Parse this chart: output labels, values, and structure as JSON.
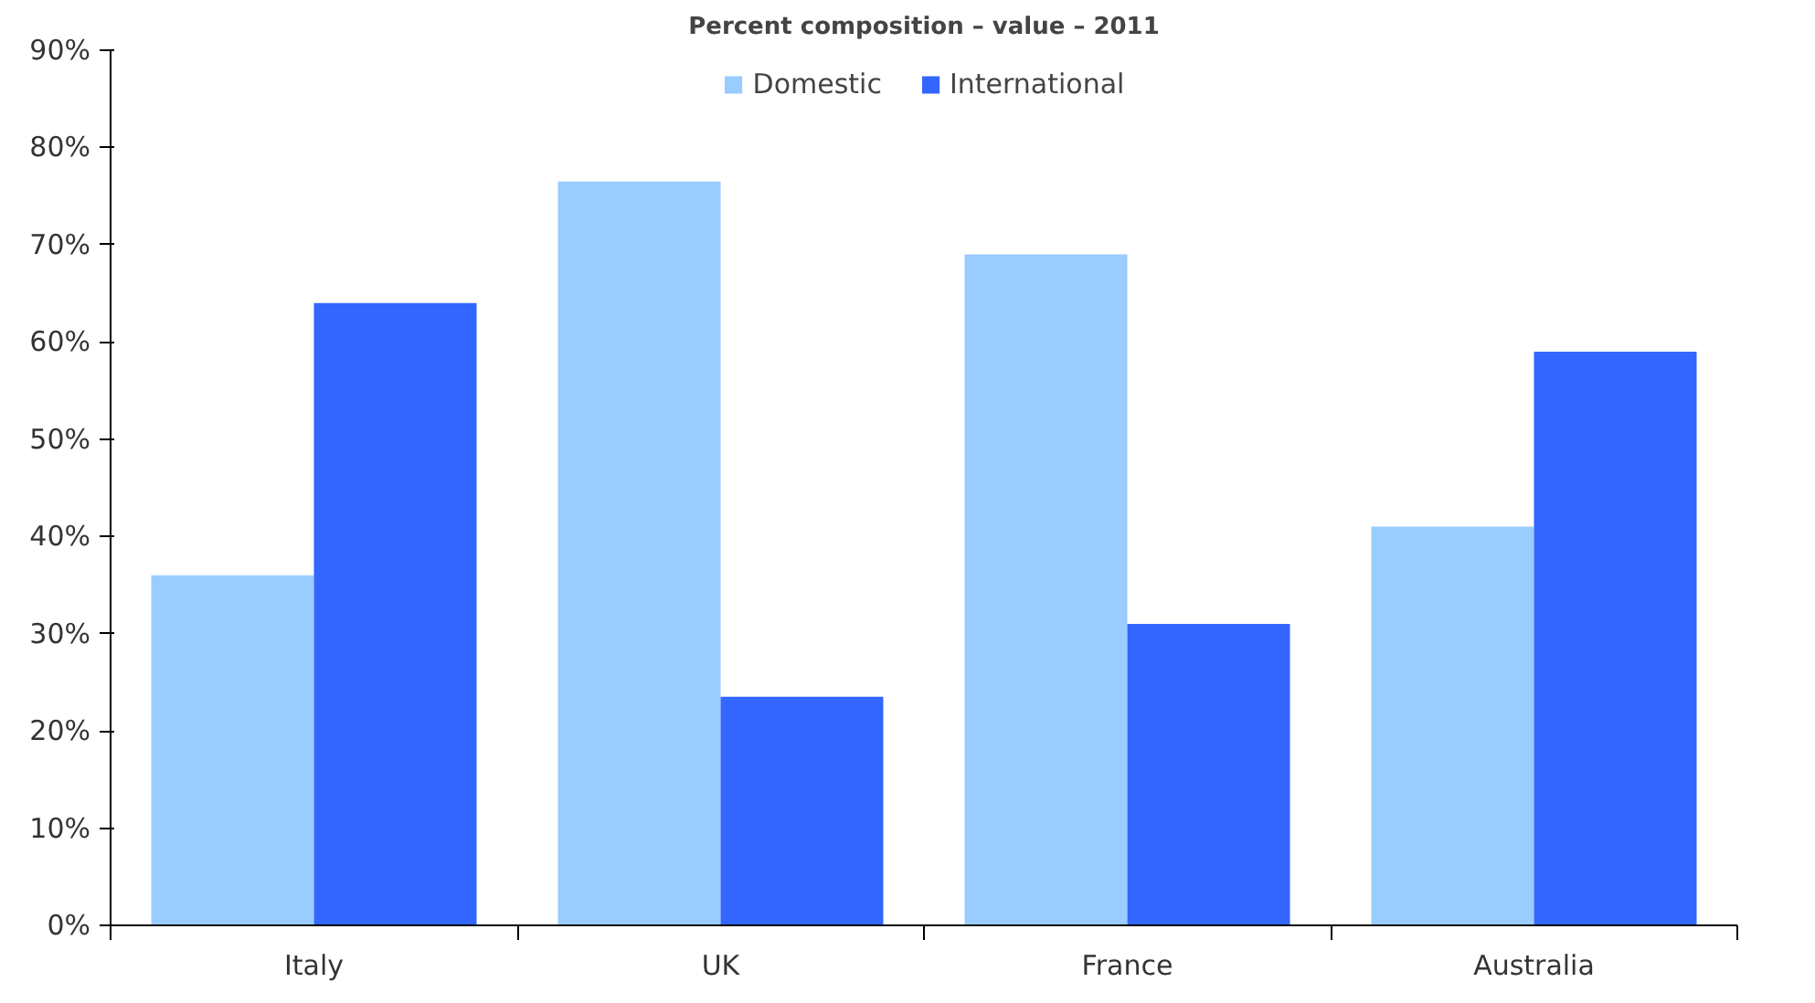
{
  "chart_data": {
    "type": "bar",
    "title": "Percent composition – value – 2011",
    "categories": [
      "Italy",
      "UK",
      "France",
      "Australia"
    ],
    "series": [
      {
        "name": "Domestic",
        "color": "#99ccff",
        "values": [
          36,
          76.5,
          69,
          41
        ]
      },
      {
        "name": "International",
        "color": "#3366ff",
        "values": [
          64,
          23.5,
          31,
          59
        ]
      }
    ],
    "ylim": [
      0,
      90
    ],
    "yticks": [
      {
        "value": 0,
        "label": "0%"
      },
      {
        "value": 10,
        "label": "10%"
      },
      {
        "value": 20,
        "label": "20%"
      },
      {
        "value": 30,
        "label": "30%"
      },
      {
        "value": 40,
        "label": "40%"
      },
      {
        "value": 50,
        "label": "50%"
      },
      {
        "value": 60,
        "label": "60%"
      },
      {
        "value": 70,
        "label": "70%"
      },
      {
        "value": 80,
        "label": "80%"
      },
      {
        "value": 90,
        "label": "90%"
      }
    ],
    "grid": false,
    "legend": "top"
  }
}
